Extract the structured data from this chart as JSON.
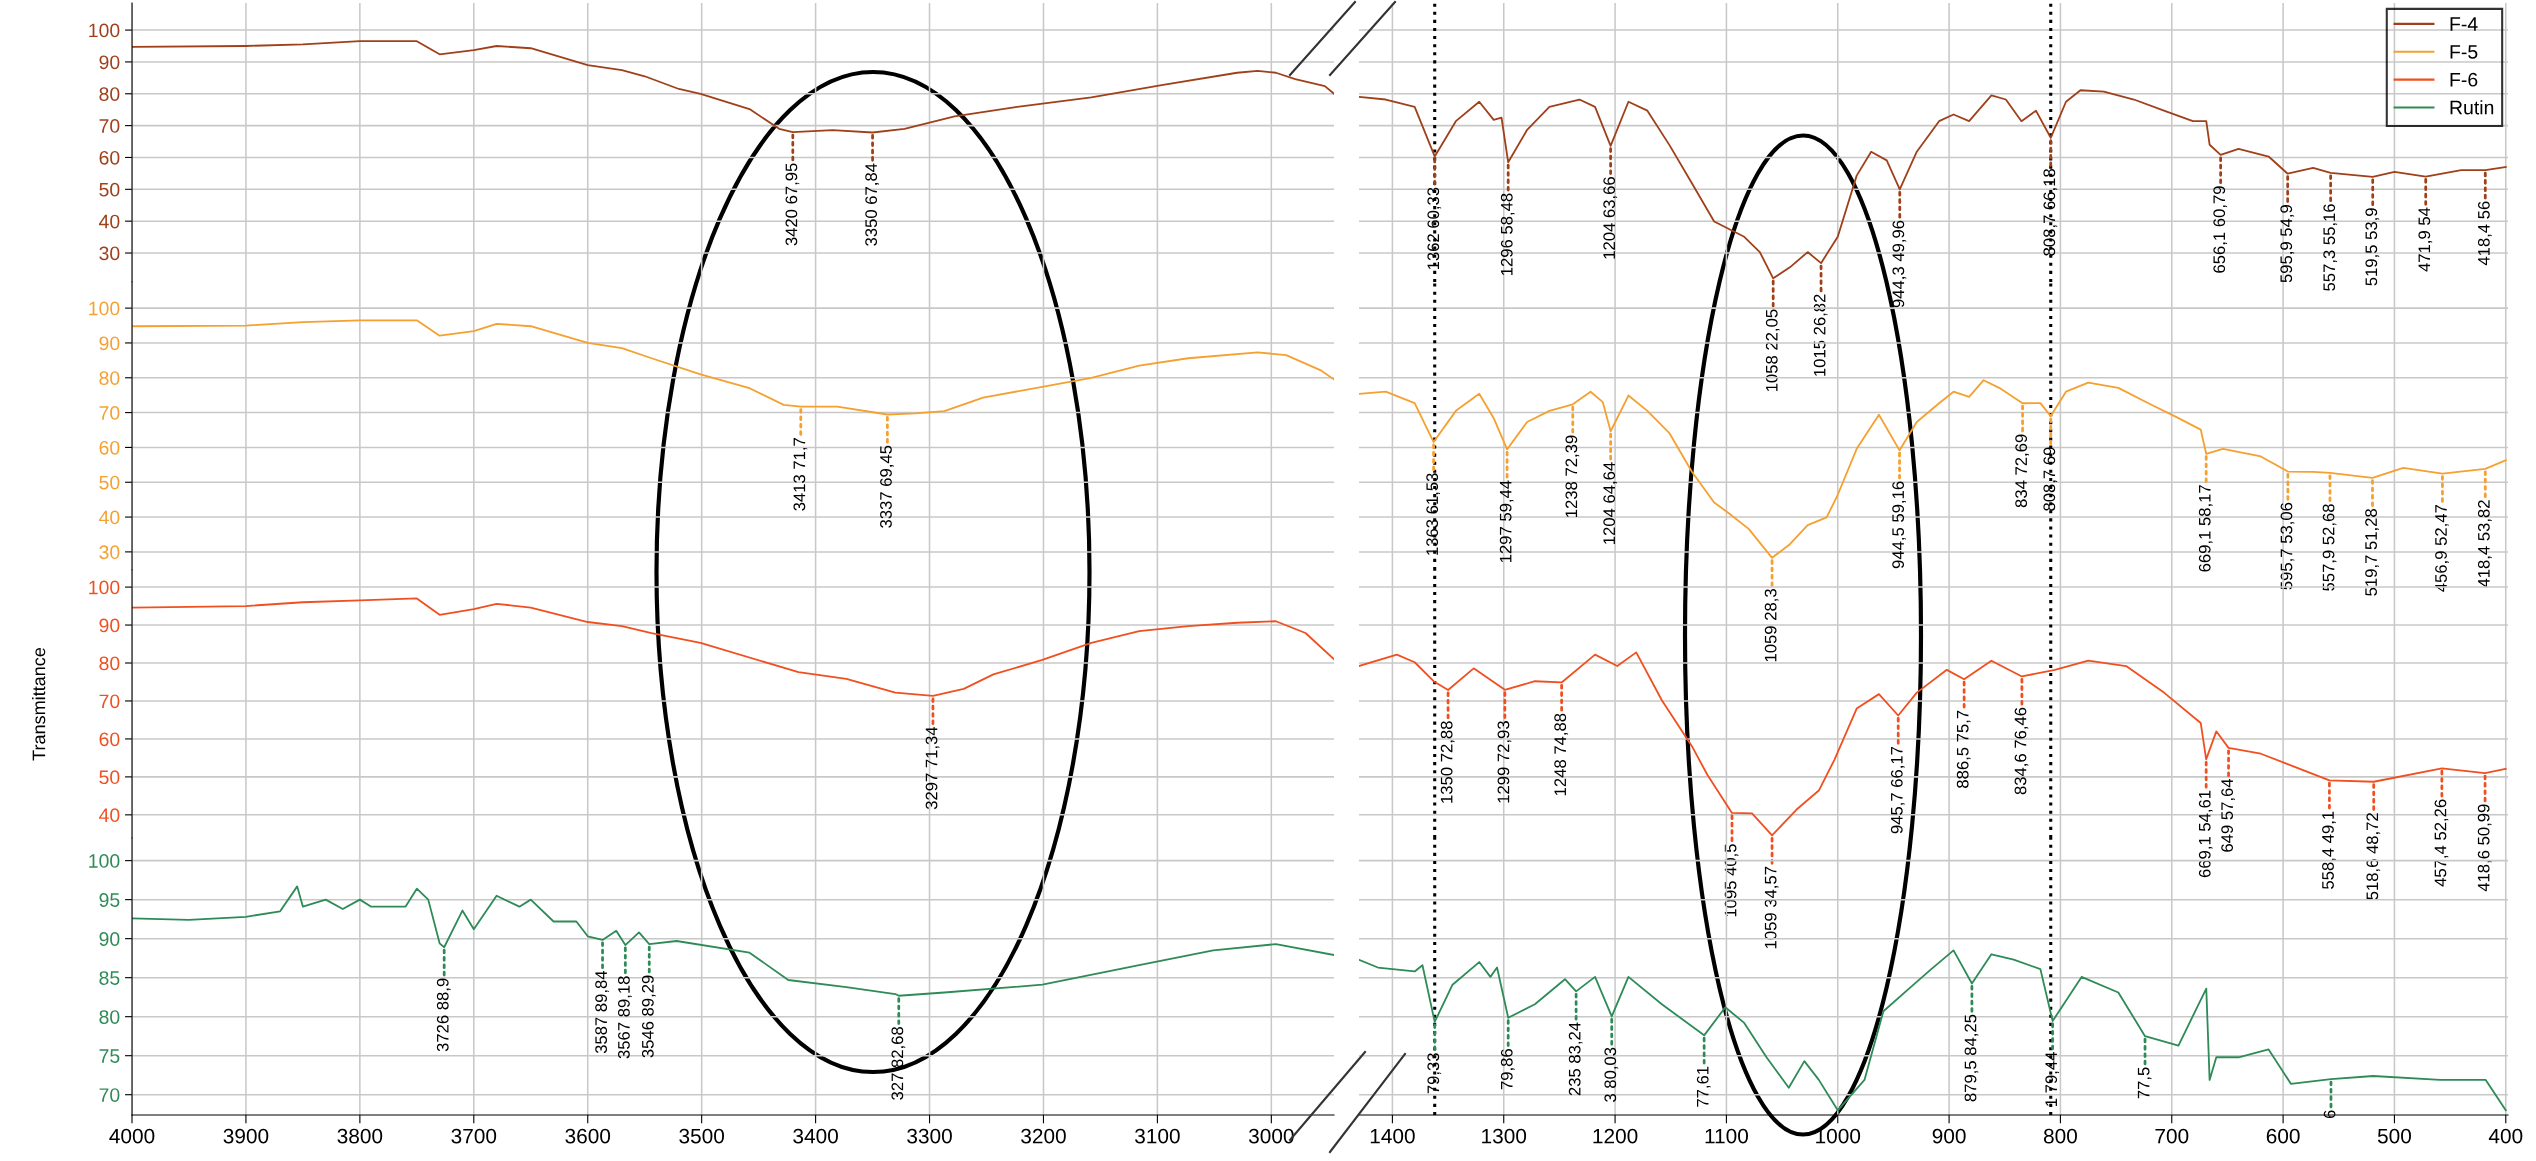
{
  "chart_data": [
    {
      "type": "line",
      "x": [
        4000,
        3900,
        3850,
        3800,
        3750,
        3730,
        3700,
        3680,
        3650,
        3600,
        3570,
        3550,
        3520,
        3501,
        3458,
        3432,
        3420,
        3385,
        3350,
        3322,
        3278,
        3223,
        3158,
        3095,
        3030,
        3012,
        2996,
        2979,
        2953,
        2945
      ],
      "series": [
        {
          "color": "#a0401a",
          "values": [
            94.7,
            95,
            95.5,
            96.5,
            96.5,
            92.4,
            93.7,
            95,
            94.3,
            89,
            87.4,
            85.5,
            81.5,
            80,
            75.2,
            69,
            67.95,
            68.6,
            67.84,
            69,
            72.9,
            75.9,
            78.9,
            82.8,
            86.6,
            87.2,
            86.6,
            84.6,
            82.4,
            80
          ]
        }
      ],
      "xlim": [
        4000,
        2945
      ],
      "xticks": [
        4000,
        3900,
        3800,
        3700,
        3600,
        3500,
        3400,
        3300,
        3200,
        3100,
        3000
      ],
      "ylim": [
        20.9,
        108.5
      ],
      "yticks": [
        30,
        40,
        50,
        60,
        70,
        80,
        90,
        100
      ],
      "grid": true,
      "tick_labels": "y",
      "annotations": [
        {
          "text": "3420 67,95",
          "x": 3420,
          "y": 67.95
        },
        {
          "text": "3350 67,84",
          "x": 3350,
          "y": 67.84
        }
      ]
    },
    {
      "type": "line",
      "x": [
        1430,
        1406,
        1380,
        1362,
        1343,
        1322,
        1309,
        1302,
        1296,
        1279,
        1259,
        1232,
        1218,
        1204,
        1188,
        1171,
        1151,
        1131,
        1111,
        1084,
        1070,
        1058,
        1043,
        1027,
        1015,
        1000,
        983,
        970,
        956,
        944.3,
        929,
        909,
        896,
        882,
        862,
        849,
        835,
        822,
        808.7,
        795,
        782,
        761,
        734,
        707,
        681,
        669,
        666,
        656.1,
        640,
        613,
        595.9,
        573,
        557.3,
        519.5,
        500,
        471.9,
        440,
        418.4,
        400
      ],
      "series": [
        {
          "name": "F-4",
          "color": "#a0401a",
          "values": [
            79,
            78.2,
            75.9,
            60.33,
            71.4,
            77.5,
            71.8,
            72.5,
            58.48,
            68.7,
            75.9,
            78.2,
            75.9,
            63.66,
            77.5,
            74.7,
            63.8,
            51.9,
            39.9,
            35.1,
            30.3,
            22.05,
            25.5,
            30.3,
            26.82,
            35.1,
            54.3,
            61.8,
            59.1,
            49.96,
            61.8,
            71.4,
            73.5,
            71.4,
            79.5,
            78.2,
            71.4,
            74.7,
            66.18,
            77.5,
            81.1,
            80.7,
            78.2,
            74.7,
            71.4,
            71.4,
            64,
            60.79,
            62.7,
            60.3,
            54.9,
            56.7,
            55.16,
            53.9,
            55.5,
            54,
            56,
            56,
            57
          ]
        }
      ],
      "xlim": [
        1430,
        398
      ],
      "xticks": [
        1400,
        1300,
        1200,
        1100,
        1000,
        900,
        800,
        700,
        600,
        500,
        400
      ],
      "ylim": [
        20.9,
        108.5
      ],
      "yticks": [
        30,
        40,
        50,
        60,
        70,
        80,
        90,
        100
      ],
      "grid": true,
      "tick_labels": false,
      "legend": "top right",
      "ref_lines": [
        {
          "axis": "x",
          "value": 1362,
          "color": "#000000",
          "line_style": "dotted"
        },
        {
          "axis": "x",
          "value": 808.7,
          "color": "#000000",
          "line_style": "dotted"
        }
      ],
      "annotations": [
        {
          "text": "1362 60,33",
          "x": 1362,
          "y": 60.33
        },
        {
          "text": "1296 58,48",
          "x": 1296,
          "y": 58.48
        },
        {
          "text": "1204 63,66",
          "x": 1204,
          "y": 63.66
        },
        {
          "text": "1058 22,05",
          "x": 1058,
          "y": 22.05
        },
        {
          "text": "1015 26,82",
          "x": 1015,
          "y": 26.82
        },
        {
          "text": "944,3 49,96",
          "x": 944.3,
          "y": 49.96
        },
        {
          "text": "808,7 66,18",
          "x": 808.7,
          "y": 66.18
        },
        {
          "text": "656,1 60,79",
          "x": 656.1,
          "y": 60.79
        },
        {
          "text": "595,9 54,9",
          "x": 595.9,
          "y": 54.9
        },
        {
          "text": "557,3 55,16",
          "x": 557.3,
          "y": 55.16
        },
        {
          "text": "519,5 53,9",
          "x": 519.5,
          "y": 53.9
        },
        {
          "text": "471,9 54",
          "x": 471.9,
          "y": 54
        },
        {
          "text": "418,4 56",
          "x": 418.4,
          "y": 56
        }
      ]
    },
    {
      "type": "line",
      "x": [
        4000,
        3900,
        3850,
        3800,
        3750,
        3730,
        3700,
        3680,
        3650,
        3600,
        3570,
        3544,
        3501,
        3458,
        3428,
        3413,
        3381,
        3337,
        3313,
        3287,
        3253,
        3201,
        3158,
        3116,
        3073,
        3012,
        2987,
        2957,
        2945
      ],
      "series": [
        {
          "color": "#f5a030",
          "values": [
            94.8,
            95,
            96,
            96.5,
            96.5,
            92.1,
            93.4,
            95.5,
            94.8,
            90,
            88.5,
            85.6,
            81,
            77,
            72.2,
            71.7,
            71.7,
            69.45,
            69.8,
            70.4,
            74.3,
            77.4,
            80,
            83.5,
            85.6,
            87.3,
            86.5,
            82.2,
            79.5
          ]
        }
      ],
      "xlim": [
        4000,
        2945
      ],
      "xticks": [
        4000,
        3900,
        3800,
        3700,
        3600,
        3500,
        3400,
        3300,
        3200,
        3100,
        3000
      ],
      "ylim": [
        24.8,
        107.5
      ],
      "yticks": [
        30,
        40,
        50,
        60,
        70,
        80,
        90,
        100
      ],
      "grid": true,
      "tick_labels": "y",
      "annotations": [
        {
          "text": "3413 71,7",
          "x": 3413,
          "y": 71.7
        },
        {
          "text": "3337 69,45",
          "x": 3337,
          "y": 69.45
        }
      ]
    },
    {
      "type": "line",
      "x": [
        1430,
        1406,
        1380,
        1363,
        1343,
        1322,
        1309,
        1297,
        1279,
        1259,
        1238,
        1222,
        1211,
        1204,
        1188,
        1171,
        1151,
        1131,
        1111,
        1097,
        1080,
        1059,
        1043,
        1027,
        1010,
        1000,
        983,
        963,
        944.5,
        929,
        909,
        896,
        882,
        869,
        855,
        834,
        818,
        808.7,
        795,
        775,
        748,
        721,
        694,
        674,
        669.1,
        654,
        620,
        595.7,
        573,
        557.9,
        519.7,
        492,
        456.9,
        418.4,
        400
      ],
      "series": [
        {
          "name": "F-5",
          "color": "#f5a030",
          "values": [
            75.4,
            76,
            72.7,
            61.53,
            70.5,
            75.4,
            68.4,
            59.44,
            67.3,
            70.5,
            72.39,
            76,
            73,
            64.64,
            74.9,
            70.5,
            64,
            53,
            44.2,
            40.9,
            36.6,
            28.3,
            32.2,
            37.7,
            39.9,
            46.4,
            59.6,
            69.4,
            59.16,
            67.3,
            72.7,
            76,
            74.5,
            79.3,
            77.1,
            72.69,
            72.7,
            69,
            76,
            78.6,
            77.1,
            72.7,
            68.4,
            65.1,
            58.17,
            59.6,
            57.4,
            53.06,
            53,
            52.68,
            51.28,
            54.1,
            52.47,
            53.82,
            56.3
          ]
        }
      ],
      "xlim": [
        1430,
        398
      ],
      "xticks": [
        1400,
        1300,
        1200,
        1100,
        1000,
        900,
        800,
        700,
        600,
        500,
        400
      ],
      "ylim": [
        24.8,
        107.5
      ],
      "yticks": [
        30,
        40,
        50,
        60,
        70,
        80,
        90,
        100
      ],
      "grid": true,
      "tick_labels": false,
      "ref_lines": [
        {
          "axis": "x",
          "value": 1362,
          "color": "#000000",
          "line_style": "dotted"
        },
        {
          "axis": "x",
          "value": 808.7,
          "color": "#000000",
          "line_style": "dotted"
        }
      ],
      "annotations": [
        {
          "text": "1363 61,53",
          "x": 1363,
          "y": 61.53
        },
        {
          "text": "1297 59,44",
          "x": 1297,
          "y": 59.44
        },
        {
          "text": "1238 72,39",
          "x": 1238,
          "y": 72.39
        },
        {
          "text": "1204 64,64",
          "x": 1204,
          "y": 64.64
        },
        {
          "text": "1059 28,3",
          "x": 1059,
          "y": 28.3
        },
        {
          "text": "944,5 59,16",
          "x": 944.5,
          "y": 59.16
        },
        {
          "text": "834 72,69",
          "x": 834,
          "y": 72.69
        },
        {
          "text": "808,7 69",
          "x": 808.7,
          "y": 69
        },
        {
          "text": "669,1 58,17",
          "x": 669.1,
          "y": 58.17
        },
        {
          "text": "595,7 53,06",
          "x": 595.7,
          "y": 53.06
        },
        {
          "text": "557,9 52,68",
          "x": 557.9,
          "y": 52.68
        },
        {
          "text": "519,7 51,28",
          "x": 519.7,
          "y": 51.28
        },
        {
          "text": "456,9 52,47",
          "x": 456.9,
          "y": 52.47
        },
        {
          "text": "418,4 53,82",
          "x": 418.4,
          "y": 53.82
        }
      ]
    },
    {
      "type": "line",
      "x": [
        4000,
        3900,
        3850,
        3800,
        3750,
        3730,
        3700,
        3680,
        3650,
        3600,
        3570,
        3544,
        3501,
        3415,
        3373,
        3330,
        3297,
        3270,
        3244,
        3201,
        3158,
        3116,
        3073,
        3030,
        2996,
        2970,
        2945
      ],
      "series": [
        {
          "color": "#f05020",
          "values": [
            94.6,
            95,
            96,
            96.5,
            97,
            92.7,
            94.2,
            95.6,
            94.6,
            90.8,
            89.7,
            87.9,
            85.3,
            77.6,
            75.8,
            72.2,
            71.34,
            73.2,
            77,
            80.8,
            85.3,
            88.4,
            89.7,
            90.6,
            91,
            87.9,
            81
          ]
        }
      ],
      "xlim": [
        4000,
        2945
      ],
      "xticks": [
        4000,
        3900,
        3800,
        3700,
        3600,
        3500,
        3400,
        3300,
        3200,
        3100,
        3000
      ],
      "ylim": [
        33.9,
        104.5
      ],
      "yticks": [
        40,
        50,
        60,
        70,
        80,
        90,
        100
      ],
      "grid": true,
      "tick_labels": "y",
      "ylabel": "Transmittance",
      "annotations": [
        {
          "text": "3297 71,34",
          "x": 3297,
          "y": 71.34
        }
      ]
    },
    {
      "type": "line",
      "x": [
        1430,
        1396,
        1380,
        1363,
        1350,
        1327,
        1299,
        1272,
        1248,
        1218,
        1198,
        1181,
        1158,
        1131,
        1117,
        1095,
        1077,
        1059,
        1037,
        1017,
        1003,
        983,
        963,
        945.7,
        929,
        902,
        886.5,
        862,
        834.6,
        805,
        775,
        741,
        707,
        674,
        669.1,
        660,
        649,
        620,
        558.4,
        518.6,
        457.4,
        418.6,
        400
      ],
      "series": [
        {
          "name": "F-6",
          "color": "#f05020",
          "values": [
            79.2,
            82.2,
            80.2,
            75.2,
            72.88,
            78.6,
            72.93,
            75.2,
            74.88,
            82.2,
            79.2,
            82.8,
            70.2,
            58.1,
            50.5,
            40.5,
            40.4,
            34.57,
            41.4,
            46.4,
            54.5,
            68,
            71.8,
            66.17,
            72.2,
            78.2,
            75.7,
            80.6,
            76.46,
            78.2,
            80.6,
            79.2,
            72.2,
            64.2,
            54.61,
            62,
            57.64,
            56.1,
            49.1,
            48.72,
            52.26,
            50.99,
            52.1
          ]
        }
      ],
      "xlim": [
        1430,
        398
      ],
      "xticks": [
        1400,
        1300,
        1200,
        1100,
        1000,
        900,
        800,
        700,
        600,
        500,
        400
      ],
      "ylim": [
        33.9,
        104.5
      ],
      "yticks": [
        40,
        50,
        60,
        70,
        80,
        90,
        100
      ],
      "grid": true,
      "tick_labels": false,
      "ref_lines": [
        {
          "axis": "x",
          "value": 1362,
          "color": "#000000",
          "line_style": "dotted"
        },
        {
          "axis": "x",
          "value": 808.7,
          "color": "#000000",
          "line_style": "dotted"
        }
      ],
      "annotations": [
        {
          "text": "1350 72,88",
          "x": 1350,
          "y": 72.88
        },
        {
          "text": "1299 72,93",
          "x": 1299,
          "y": 72.93
        },
        {
          "text": "1248 74,88",
          "x": 1248,
          "y": 74.88
        },
        {
          "text": "1095 40,5",
          "x": 1095,
          "y": 40.5
        },
        {
          "text": "1059 34,57",
          "x": 1059,
          "y": 34.57
        },
        {
          "text": "945,7 66,17",
          "x": 945.7,
          "y": 66.17
        },
        {
          "text": "886,5 75,7",
          "x": 886.5,
          "y": 75.7
        },
        {
          "text": "834,6 76,46",
          "x": 834.6,
          "y": 76.46
        },
        {
          "text": "669,1 54,61",
          "x": 669.1,
          "y": 54.61
        },
        {
          "text": "649 57,64",
          "x": 649,
          "y": 57.64
        },
        {
          "text": "558,4 49,1",
          "x": 558.4,
          "y": 49.1
        },
        {
          "text": "518,6 48,72",
          "x": 518.6,
          "y": 48.72
        },
        {
          "text": "457,4 52,26",
          "x": 457.4,
          "y": 52.26
        },
        {
          "text": "418,6 50,99",
          "x": 418.6,
          "y": 50.99
        }
      ]
    },
    {
      "type": "line",
      "x": [
        4000,
        3950,
        3900,
        3870,
        3855,
        3850,
        3830,
        3815,
        3800,
        3790,
        3760,
        3750,
        3740,
        3730,
        3726,
        3710,
        3700,
        3680,
        3660,
        3650,
        3630,
        3610,
        3600,
        3587,
        3575,
        3567,
        3555,
        3546,
        3522,
        3458,
        3424,
        3373,
        3330,
        3327,
        3287,
        3201,
        3116,
        3051,
        2996,
        2945
      ],
      "series": [
        {
          "color": "#2e8b57",
          "values": [
            92.6,
            92.4,
            92.8,
            93.5,
            96.7,
            94.1,
            95,
            93.8,
            95,
            94.1,
            94.1,
            96.4,
            95,
            89.4,
            88.9,
            93.6,
            91.2,
            95.5,
            94.1,
            95,
            92.2,
            92.2,
            90.3,
            89.84,
            91,
            89.18,
            90.8,
            89.29,
            89.7,
            88.2,
            84.7,
            83.8,
            82.9,
            82.68,
            83.1,
            84.1,
            86.6,
            88.5,
            89.3,
            87.9
          ]
        }
      ],
      "xlim": [
        4000,
        2945
      ],
      "xticks": [
        4000,
        3900,
        3800,
        3700,
        3600,
        3500,
        3400,
        3300,
        3200,
        3100,
        3000
      ],
      "ylim": [
        67.4,
        102.9
      ],
      "yticks": [
        70,
        75,
        80,
        85,
        90,
        95,
        100
      ],
      "grid": true,
      "annotations": [
        {
          "text": "3726 88,9",
          "x": 3726,
          "y": 88.9
        },
        {
          "text": "3587 89,84",
          "x": 3587,
          "y": 89.84
        },
        {
          "text": "3567 89,18",
          "x": 3567,
          "y": 89.18
        },
        {
          "text": "3546 89,29",
          "x": 3546,
          "y": 89.29
        },
        {
          "text": "327 82,68",
          "x": 3327,
          "y": 82.68
        }
      ]
    },
    {
      "type": "line",
      "x": [
        1430,
        1413,
        1380,
        1373,
        1362,
        1346,
        1322,
        1312,
        1306,
        1296,
        1272,
        1245,
        1235,
        1218,
        1203,
        1188,
        1158,
        1120,
        1101,
        1084,
        1064,
        1044,
        1030,
        1017,
        1000,
        976,
        959,
        936,
        916,
        896,
        879.5,
        862,
        842,
        818,
        807,
        781,
        748,
        724,
        694,
        669,
        666,
        660,
        640,
        613,
        593,
        557,
        519,
        459,
        418,
        400
      ],
      "series": [
        {
          "name": "Rutin",
          "color": "#2e8b57",
          "values": [
            87.3,
            86.3,
            85.8,
            86.6,
            79.33,
            84.1,
            87,
            85.1,
            86.3,
            79.86,
            81.6,
            84.8,
            83.24,
            85.1,
            80.03,
            85.1,
            81.6,
            77.61,
            81.2,
            79.2,
            74.8,
            70.9,
            74.3,
            71.9,
            68,
            71.9,
            80.7,
            83.6,
            86.1,
            88.5,
            84.25,
            88,
            87.3,
            86.1,
            79.44,
            85.1,
            83.1,
            77.5,
            76.3,
            83.6,
            71.9,
            74.8,
            74.8,
            75.8,
            71.4,
            72,
            72.4,
            71.9,
            71.9,
            68
          ]
        }
      ],
      "xlim": [
        1430,
        398
      ],
      "xticks": [
        1400,
        1300,
        1200,
        1100,
        1000,
        900,
        800,
        700,
        600,
        500,
        400
      ],
      "ylim": [
        67.4,
        102.9
      ],
      "yticks": [
        70,
        75,
        80,
        85,
        90,
        95,
        100
      ],
      "grid": true,
      "tick_labels": "x",
      "ref_lines": [
        {
          "axis": "x",
          "value": 1362,
          "color": "#000000",
          "line_style": "dotted"
        },
        {
          "axis": "x",
          "value": 808.7,
          "color": "#000000",
          "line_style": "dotted"
        }
      ],
      "annotations": [
        {
          "text": "79,33",
          "x": 1362,
          "y": 79.33
        },
        {
          "text": "79,86",
          "x": 1296,
          "y": 79.86
        },
        {
          "text": "235 83,24",
          "x": 1235,
          "y": 83.24
        },
        {
          "text": "3 80,03",
          "x": 1203,
          "y": 80.03
        },
        {
          "text": "77,61",
          "x": 1120,
          "y": 77.61
        },
        {
          "text": "879,5 84,25",
          "x": 879.5,
          "y": 84.25
        },
        {
          "text": "1 79,44",
          "x": 807,
          "y": 79.44
        },
        {
          "text": "77,5",
          "x": 724,
          "y": 77.5
        },
        {
          "text": "6",
          "x": 557,
          "y": 72
        }
      ]
    }
  ]
}
